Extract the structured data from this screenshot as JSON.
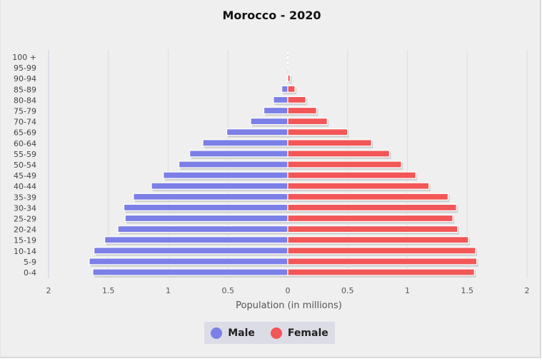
{
  "chart_data": {
    "type": "bar",
    "orientation": "horizontal-population-pyramid",
    "title": "Morocco - 2020",
    "xlabel": "Population (in millions)",
    "xlim": [
      -2,
      2
    ],
    "x_ticks": [
      "2",
      "1.5",
      "1",
      "0.5",
      "0",
      "0.5",
      "1",
      "1.5",
      "2"
    ],
    "grid": true,
    "legend_position": "bottom",
    "categories": [
      "100 +",
      "95-99",
      "90-94",
      "85-89",
      "80-84",
      "75-79",
      "70-74",
      "65-69",
      "60-64",
      "55-59",
      "50-54",
      "45-49",
      "40-44",
      "35-39",
      "30-34",
      "25-29",
      "20-24",
      "15-19",
      "10-14",
      "5-9",
      "0-4"
    ],
    "series": [
      {
        "name": "Male",
        "color": "#7b7fe6",
        "values": [
          0.0,
          0.0,
          0.005,
          0.05,
          0.12,
          0.2,
          0.31,
          0.51,
          0.71,
          0.82,
          0.91,
          1.04,
          1.14,
          1.29,
          1.37,
          1.36,
          1.42,
          1.53,
          1.62,
          1.66,
          1.63
        ]
      },
      {
        "name": "Female",
        "color": "#f25656",
        "values": [
          0.0,
          0.0,
          0.02,
          0.06,
          0.15,
          0.24,
          0.33,
          0.5,
          0.7,
          0.85,
          0.95,
          1.07,
          1.18,
          1.34,
          1.41,
          1.38,
          1.42,
          1.51,
          1.57,
          1.58,
          1.56
        ]
      }
    ]
  }
}
